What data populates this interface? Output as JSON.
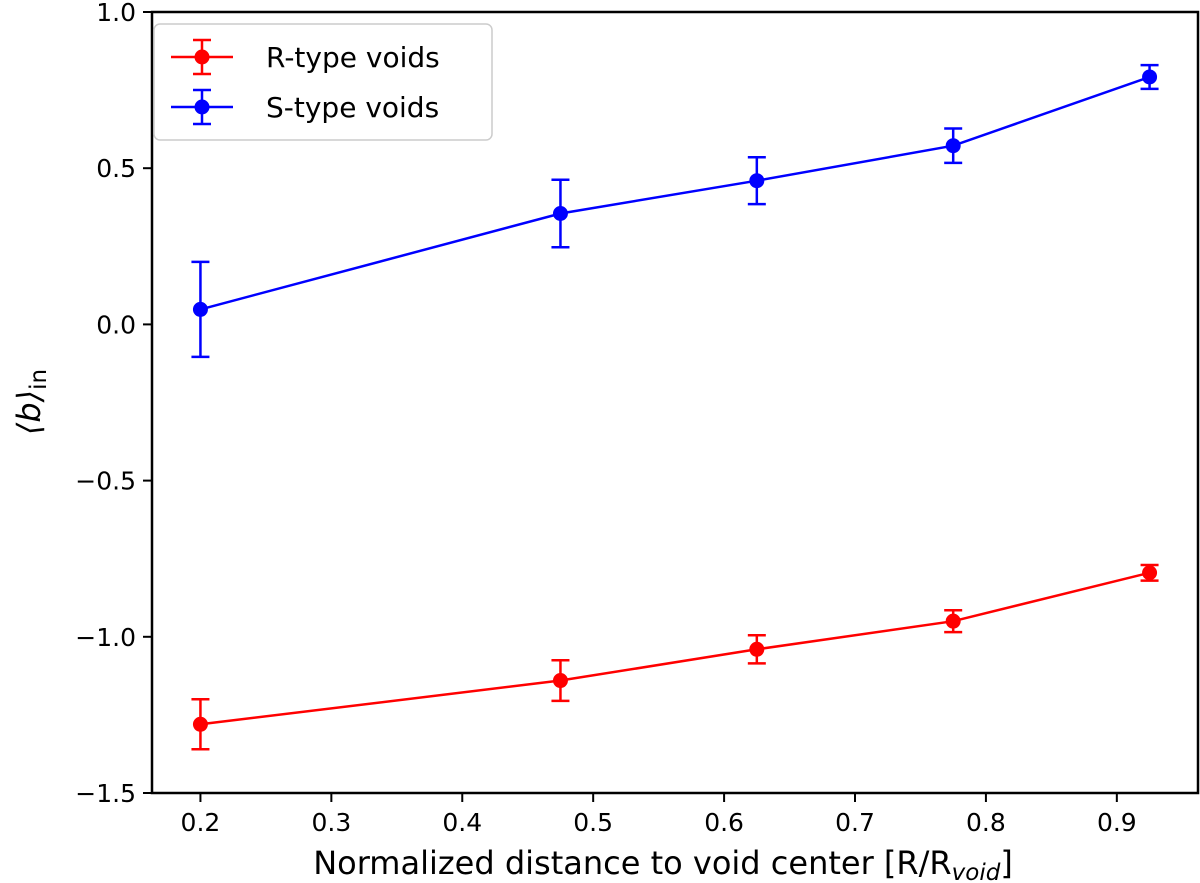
{
  "chart_data": {
    "type": "line",
    "title": "",
    "xlabel": "Normalized distance to void center [R/R",
    "xlabel_sub": "void",
    "xlabel_close": "]",
    "ylabel": "⟨b⟩",
    "ylabel_sub": "in",
    "xlim": [
      0.163,
      0.962
    ],
    "ylim": [
      -1.5,
      1.0
    ],
    "xticks": [
      0.2,
      0.3,
      0.4,
      0.5,
      0.6,
      0.7,
      0.8,
      0.9
    ],
    "xtick_labels": [
      "0.2",
      "0.3",
      "0.4",
      "0.5",
      "0.6",
      "0.7",
      "0.8",
      "0.9"
    ],
    "yticks": [
      -1.5,
      -1.0,
      -0.5,
      0.0,
      0.5,
      1.0
    ],
    "ytick_labels": [
      "−1.5",
      "−1.0",
      "−0.5",
      "0.0",
      "0.5",
      "1.0"
    ],
    "grid": false,
    "legend_position": "top-left",
    "series": [
      {
        "name": "R-type voids",
        "color": "#ff0000",
        "x": [
          0.2,
          0.475,
          0.625,
          0.775,
          0.925
        ],
        "y": [
          -1.28,
          -1.14,
          -1.04,
          -0.95,
          -0.795
        ],
        "err": [
          0.08,
          0.065,
          0.045,
          0.035,
          0.025
        ]
      },
      {
        "name": "S-type voids",
        "color": "#0000ff",
        "x": [
          0.2,
          0.475,
          0.625,
          0.775,
          0.925
        ],
        "y": [
          0.048,
          0.355,
          0.46,
          0.572,
          0.792
        ],
        "err": [
          0.152,
          0.108,
          0.075,
          0.055,
          0.038
        ]
      }
    ]
  }
}
